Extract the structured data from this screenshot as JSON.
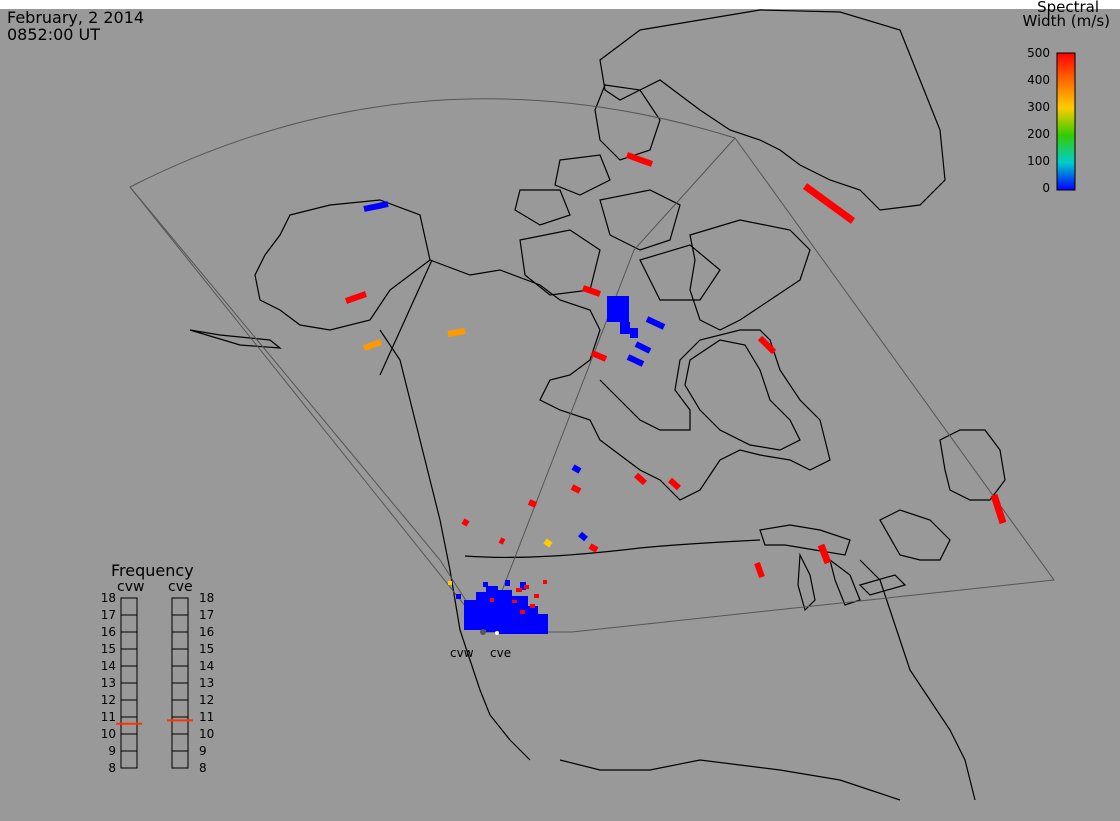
{
  "header": {
    "date": "February, 2 2014",
    "time": "0852:00 UT"
  },
  "colorbar": {
    "title_line1": "Spectral",
    "title_line2": "Width (m/s)",
    "ticks": [
      "500",
      "400",
      "300",
      "200",
      "100",
      "0"
    ],
    "gradient": [
      "#ff0000",
      "#ff6a00",
      "#ffcc00",
      "#33cc00",
      "#00cccc",
      "#0000ff"
    ]
  },
  "frequency_panel": {
    "title": "Frequency",
    "sites": [
      "cvw",
      "cve"
    ],
    "levels": [
      "18",
      "17",
      "16",
      "15",
      "14",
      "13",
      "12",
      "11",
      "10",
      "9",
      "8"
    ],
    "cvw_value": 10.6,
    "cve_value": 10.8,
    "marker_color": "#ff3300"
  },
  "radars": [
    "cvw",
    "cve"
  ],
  "colors": {
    "background": "#999999",
    "coast": "#000000",
    "fov": "#555555",
    "red": "#ff0000",
    "blue": "#0000ff",
    "orange": "#ff9900",
    "yellow": "#ffcc00"
  }
}
